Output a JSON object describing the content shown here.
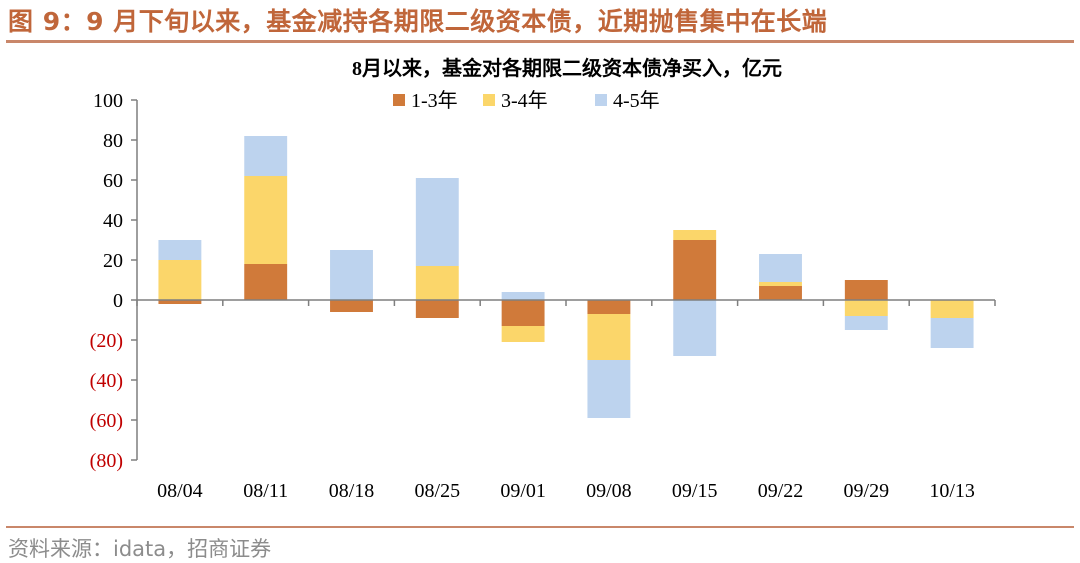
{
  "figure": {
    "title": "图 9：9 月下旬以来，基金减持各期限二级资本债，近期抛售集中在长端",
    "source": "资料来源：idata，招商证券"
  },
  "colors": {
    "series_1_3": "#D07A3A",
    "series_3_4": "#FBD66A",
    "series_4_5": "#BDD3EE",
    "negative_tick": "#C00000",
    "axis": "#7F7F7F",
    "accent": "#C0663A"
  },
  "chart_data": {
    "type": "bar",
    "stacked": true,
    "title": "8月以来，基金对各期限二级资本债净买入，亿元",
    "xlabel": "",
    "ylabel": "",
    "ylim": [
      -80,
      100
    ],
    "yticks": [
      100,
      80,
      60,
      40,
      20,
      0,
      -20,
      -40,
      -60,
      -80
    ],
    "ytick_labels": [
      "100",
      "80",
      "60",
      "40",
      "20",
      "0",
      "(20)",
      "(40)",
      "(60)",
      "(80)"
    ],
    "categories": [
      "08/04",
      "08/11",
      "08/18",
      "08/25",
      "09/01",
      "09/08",
      "09/15",
      "09/22",
      "09/29",
      "10/13"
    ],
    "legend_position": "top-center",
    "grid": false,
    "series": [
      {
        "name": "1-3年",
        "color": "#D07A3A",
        "values": [
          -2,
          18,
          -6,
          -9,
          -13,
          -7,
          30,
          7,
          10,
          0
        ]
      },
      {
        "name": "3-4年",
        "color": "#FBD66A",
        "values": [
          20,
          44,
          0,
          17,
          -8,
          -23,
          5,
          2,
          -8,
          -9
        ]
      },
      {
        "name": "4-5年",
        "color": "#BDD3EE",
        "values": [
          10,
          20,
          25,
          44,
          4,
          -29,
          -28,
          14,
          -7,
          -15
        ]
      }
    ]
  }
}
